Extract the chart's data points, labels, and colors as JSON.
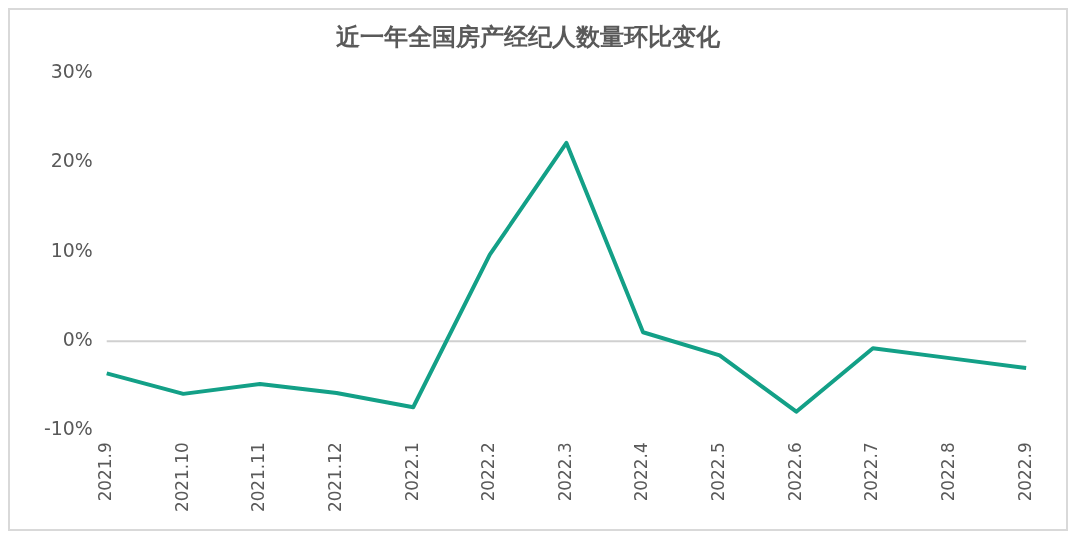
{
  "chart_data": {
    "type": "line",
    "title": "近一年全国房产经纪人数量环比变化",
    "categories": [
      "2021.9",
      "2021.10",
      "2021.11",
      "2021.12",
      "2022.1",
      "2022.2",
      "2022.3",
      "2022.4",
      "2022.5",
      "2022.6",
      "2022.7",
      "2022.8",
      "2022.9"
    ],
    "series": [
      {
        "color": "#13a087",
        "values": [
          -3.6,
          -5.9,
          -4.8,
          -5.8,
          -7.4,
          9.7,
          22.2,
          1.0,
          -1.6,
          -7.9,
          -0.8,
          -1.9,
          -3.0
        ]
      }
    ],
    "ylim": [
      -10,
      30
    ],
    "yticks": [
      {
        "value": -10,
        "label": "-10%"
      },
      {
        "value": 0,
        "label": "0%"
      },
      {
        "value": 10,
        "label": "10%"
      },
      {
        "value": 20,
        "label": "20%"
      },
      {
        "value": 30,
        "label": "30%"
      }
    ],
    "ref_lines": [
      {
        "axis": "y",
        "value": 0,
        "color": "#d0d0d0"
      }
    ],
    "grid": false,
    "legend": false,
    "marker": "none",
    "line_style": "solid"
  }
}
